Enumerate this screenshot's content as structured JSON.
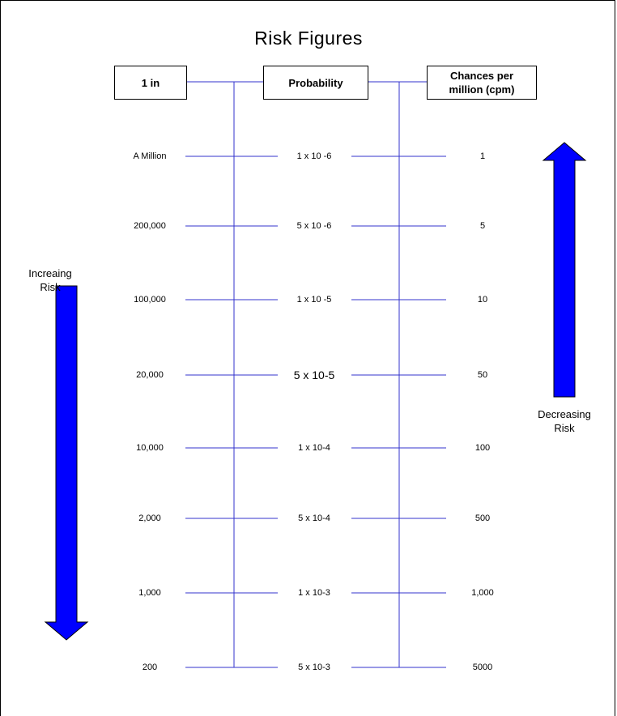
{
  "title": "Risk Figures",
  "headers": {
    "one_in": "1 in",
    "probability": "Probability",
    "cpm_line1": "Chances per",
    "cpm_line2": "million (cpm)"
  },
  "rows": [
    {
      "one_in": "A Million",
      "probability": "1 x 10 -6",
      "cpm": "1"
    },
    {
      "one_in": "200,000",
      "probability": "5 x 10 -6",
      "cpm": "5"
    },
    {
      "one_in": "100,000",
      "probability": "1 x 10 -5",
      "cpm": "10"
    },
    {
      "one_in": "20,000",
      "probability": "5 x 10-5",
      "cpm": "50"
    },
    {
      "one_in": "10,000",
      "probability": "1 x 10-4",
      "cpm": "100"
    },
    {
      "one_in": "2,000",
      "probability": "5 x 10-4",
      "cpm": "500"
    },
    {
      "one_in": "1,000",
      "probability": "1 x 10-3",
      "cpm": "1,000"
    },
    {
      "one_in": "200",
      "probability": "5 x 10-3",
      "cpm": "5000"
    }
  ],
  "increasing": {
    "line1": "Increaing",
    "line2": "Risk"
  },
  "decreasing": {
    "line1": "Decreasing",
    "line2": "Risk"
  },
  "colors": {
    "line": "#3333cc",
    "arrow": "#0000ff"
  }
}
